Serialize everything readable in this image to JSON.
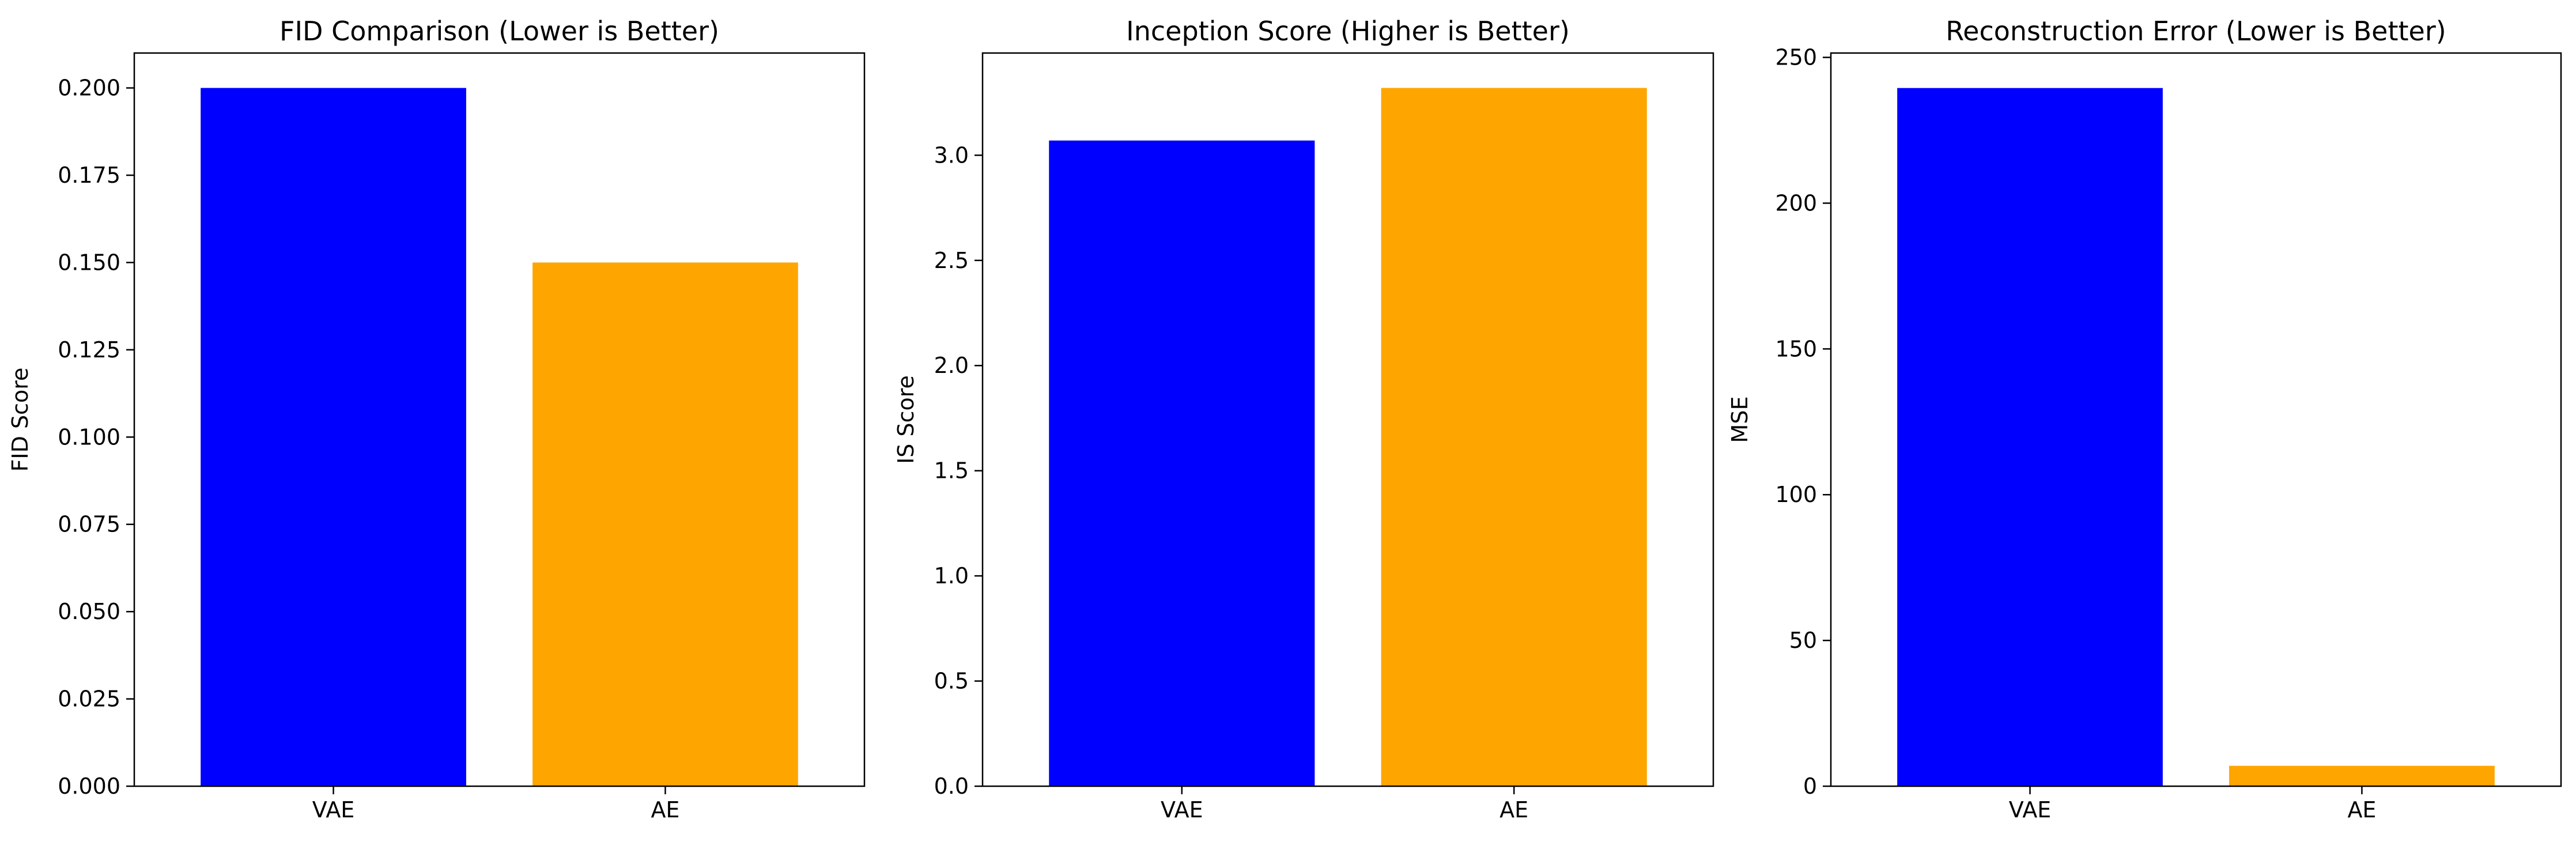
{
  "chart_data": [
    {
      "type": "bar",
      "title": "FID Comparison (Lower is Better)",
      "xlabel": "",
      "ylabel": "FID Score",
      "categories": [
        "VAE",
        "AE"
      ],
      "values": [
        0.2,
        0.15
      ],
      "colors": [
        "#0000ff",
        "#ffa500"
      ],
      "ylim": [
        0,
        0.21
      ],
      "yticks": [
        0.0,
        0.025,
        0.05,
        0.075,
        0.1,
        0.125,
        0.15,
        0.175,
        0.2
      ],
      "ytick_labels": [
        "0.000",
        "0.025",
        "0.050",
        "0.075",
        "0.100",
        "0.125",
        "0.150",
        "0.175",
        "0.200"
      ],
      "grid": false,
      "legend": "none"
    },
    {
      "type": "bar",
      "title": "Inception Score (Higher is Better)",
      "xlabel": "",
      "ylabel": "IS Score",
      "categories": [
        "VAE",
        "AE"
      ],
      "values": [
        3.07,
        3.32
      ],
      "colors": [
        "#0000ff",
        "#ffa500"
      ],
      "ylim": [
        0,
        3.486
      ],
      "yticks": [
        0.0,
        0.5,
        1.0,
        1.5,
        2.0,
        2.5,
        3.0
      ],
      "ytick_labels": [
        "0.0",
        "0.5",
        "1.0",
        "1.5",
        "2.0",
        "2.5",
        "3.0"
      ],
      "grid": false,
      "legend": "none"
    },
    {
      "type": "bar",
      "title": "Reconstruction Error (Lower is Better)",
      "xlabel": "",
      "ylabel": "MSE",
      "categories": [
        "VAE",
        "AE"
      ],
      "values": [
        239.5,
        7
      ],
      "colors": [
        "#0000ff",
        "#ffa500"
      ],
      "ylim": [
        0,
        251.5
      ],
      "yticks": [
        0,
        50,
        100,
        150,
        200,
        250
      ],
      "ytick_labels": [
        "0",
        "50",
        "100",
        "150",
        "200",
        "250"
      ],
      "grid": false,
      "legend": "none"
    }
  ]
}
